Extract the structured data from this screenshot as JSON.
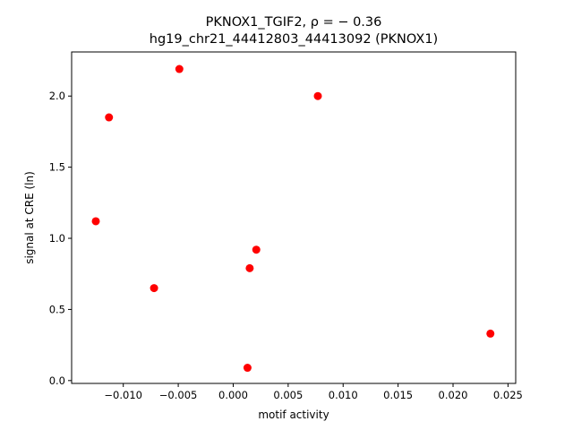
{
  "chart_data": {
    "type": "scatter",
    "title_line1": "PKNOX1_TGIF2, ρ = − 0.36",
    "title_line2": "hg19_chr21_44412803_44413092 (PKNOX1)",
    "xlabel": "motif activity",
    "ylabel": "signal at CRE (ln)",
    "xlim": [
      -0.0147,
      0.0257
    ],
    "ylim": [
      -0.02,
      2.31
    ],
    "x_ticks": [
      -0.01,
      -0.005,
      0.0,
      0.005,
      0.01,
      0.015,
      0.02,
      0.025
    ],
    "x_tick_labels": [
      "−0.010",
      "−0.005",
      "0.000",
      "0.005",
      "0.010",
      "0.015",
      "0.020",
      "0.025"
    ],
    "y_ticks": [
      0.0,
      0.5,
      1.0,
      1.5,
      2.0
    ],
    "y_tick_labels": [
      "0.0",
      "0.5",
      "1.0",
      "1.5",
      "2.0"
    ],
    "grid": false,
    "legend": "none",
    "marker_color": "#ff0000",
    "points": [
      {
        "x": -0.0125,
        "y": 1.12
      },
      {
        "x": -0.0113,
        "y": 1.85
      },
      {
        "x": -0.0072,
        "y": 0.65
      },
      {
        "x": -0.0049,
        "y": 2.19
      },
      {
        "x": 0.0013,
        "y": 0.09
      },
      {
        "x": 0.0015,
        "y": 0.79
      },
      {
        "x": 0.0021,
        "y": 0.92
      },
      {
        "x": 0.0077,
        "y": 2.0
      },
      {
        "x": 0.0234,
        "y": 0.33
      }
    ]
  }
}
